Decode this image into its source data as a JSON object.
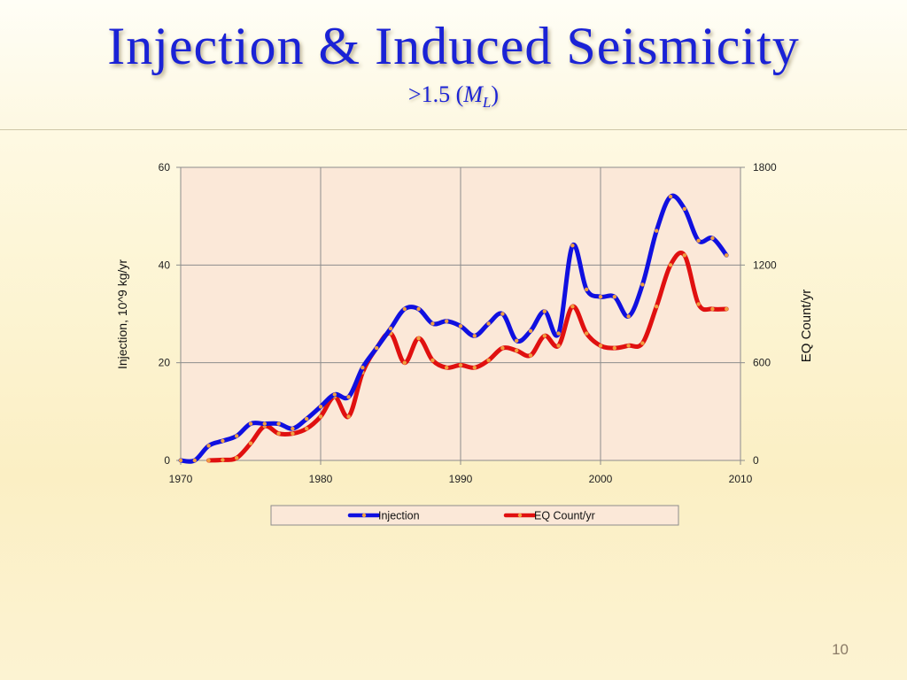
{
  "slide": {
    "title": "Injection & Induced Seismicity",
    "subtitle_prefix": ">1.5 (",
    "subtitle_symbol": "M",
    "subtitle_subscript": "L",
    "subtitle_suffix": ")",
    "page_number": "10"
  },
  "colors": {
    "injection": "#1010e0",
    "eq": "#e01010",
    "marker": "#f0a040",
    "plot_bg": "#fbe8d8",
    "title": "#1a22d6"
  },
  "chart_data": {
    "type": "line",
    "xlabel": "",
    "ylabel": "Injection, 10^9 kg/yr",
    "y2label": "EQ Count/yr",
    "xlim": [
      1970,
      2010
    ],
    "ylim": [
      0,
      60
    ],
    "y2lim": [
      0,
      1800
    ],
    "x_ticks": [
      "1970",
      "1980",
      "1990",
      "2000",
      "2010"
    ],
    "y_ticks": [
      "0",
      "20",
      "40",
      "60"
    ],
    "y2_ticks": [
      "0",
      "600",
      "1200",
      "1800"
    ],
    "grid": true,
    "legend": "bottom",
    "series": [
      {
        "name": "Injection",
        "axis": "left",
        "x": [
          1970,
          1971,
          1972,
          1973,
          1974,
          1975,
          1976,
          1977,
          1978,
          1979,
          1980,
          1981,
          1982,
          1983,
          1984,
          1985,
          1986,
          1987,
          1988,
          1989,
          1990,
          1991,
          1992,
          1993,
          1994,
          1995,
          1996,
          1997,
          1998,
          1999,
          2000,
          2001,
          2002,
          2003,
          2004,
          2005,
          2006,
          2007,
          2008,
          2009
        ],
        "values": [
          0,
          0,
          3,
          4,
          5,
          7.5,
          7.5,
          7.5,
          6.5,
          8.5,
          11,
          13.5,
          13,
          19,
          23,
          27,
          31,
          31,
          28,
          28.5,
          27.5,
          25.5,
          28,
          30,
          24.5,
          26.5,
          30.5,
          26,
          44,
          35,
          33.5,
          33.5,
          29.5,
          36,
          47,
          54,
          51.5,
          45,
          45.5,
          42
        ]
      },
      {
        "name": "EQ Count/yr",
        "axis": "right",
        "x": [
          1972,
          1973,
          1974,
          1975,
          1976,
          1977,
          1978,
          1979,
          1980,
          1981,
          1982,
          1983,
          1984,
          1985,
          1986,
          1987,
          1988,
          1989,
          1990,
          1991,
          1992,
          1993,
          1994,
          1995,
          1996,
          1997,
          1998,
          1999,
          2000,
          2001,
          2002,
          2003,
          2004,
          2005,
          2006,
          2007,
          2008,
          2009
        ],
        "values": [
          0,
          3,
          15,
          105,
          210,
          165,
          165,
          195,
          270,
          390,
          270,
          540,
          690,
          780,
          600,
          750,
          615,
          570,
          585,
          570,
          615,
          690,
          675,
          645,
          765,
          705,
          945,
          780,
          705,
          690,
          705,
          720,
          945,
          1200,
          1260,
          960,
          930,
          930
        ]
      }
    ]
  }
}
